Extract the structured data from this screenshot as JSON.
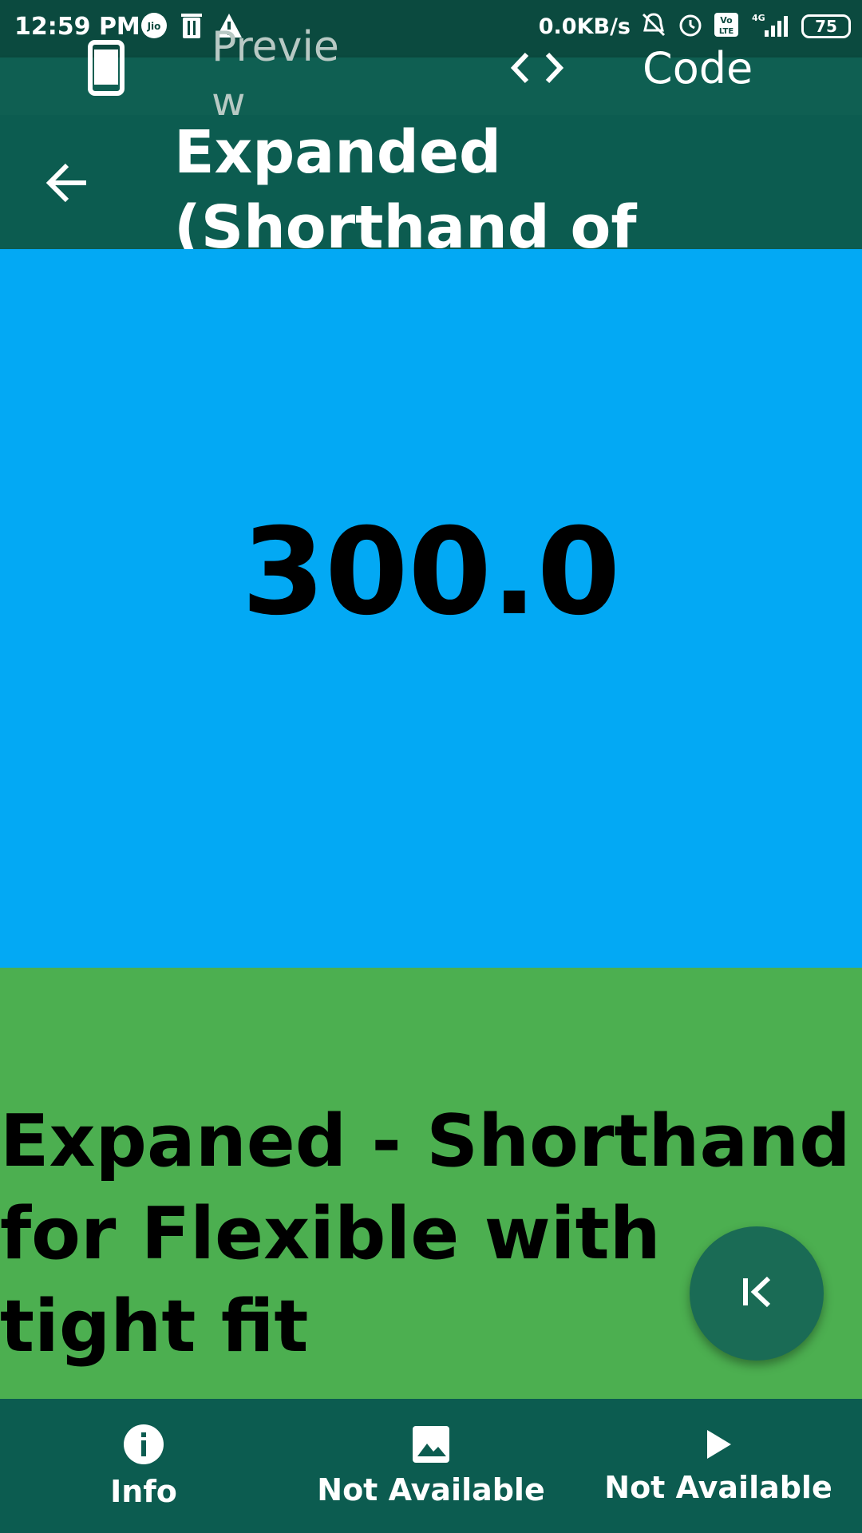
{
  "status_bar": {
    "time": "12:59 PM",
    "speed": "0.0KB/s",
    "battery": "75",
    "icons": [
      "jio-icon",
      "delete-icon",
      "warning-icon",
      "mute-icon",
      "alarm-icon",
      "volte-icon",
      "signal-4g-icon"
    ]
  },
  "tabs": [
    {
      "label": "Preview",
      "icon": "phone-icon"
    },
    {
      "label": "Code",
      "icon": "code-icon"
    }
  ],
  "appbar": {
    "title": "Expanded\n(Shorthand of Tight …",
    "back_icon": "arrow-back-icon"
  },
  "content": {
    "value": "300.0",
    "green_text": "Expaned - Shorthand\nfor Flexible with tight fit"
  },
  "colors": {
    "blue_panel": "#03a9f4",
    "green_panel": "#4caf50",
    "primary_dark": "#0c5c50",
    "fab": "#1a6b55"
  },
  "bottom_nav": [
    {
      "label": "Info",
      "icon": "info-icon"
    },
    {
      "label": "Not Available",
      "icon": "image-icon"
    },
    {
      "label": "Not Available",
      "icon": "play-icon"
    }
  ]
}
